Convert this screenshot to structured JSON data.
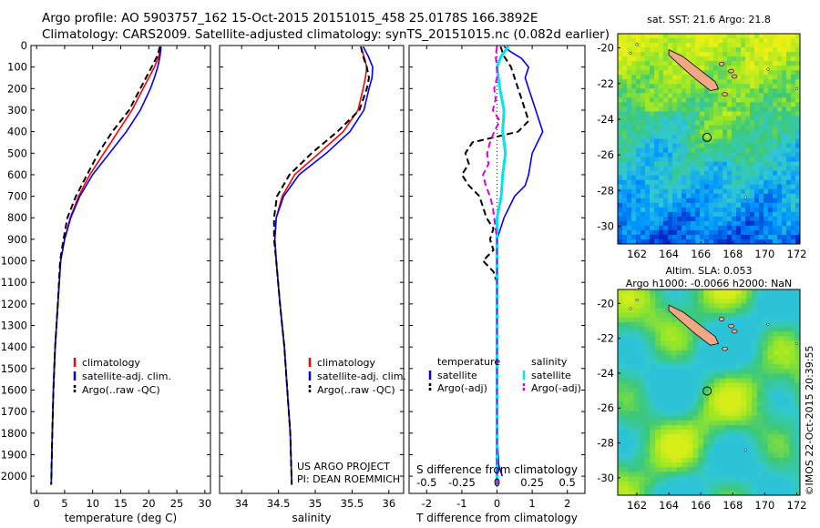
{
  "header": {
    "line1": "Argo profile: AO 5903757_162 15-Oct-2015 20151015_458 25.0178S 166.3892E",
    "line2": "Climatology: CARS2009. Satellite-adjusted climatology: synTS_20151015.nc (0.082d earlier)"
  },
  "colors": {
    "clim": "#ff0000",
    "sat": "#0000ff",
    "argo": "#000000",
    "sat_sal": "#00e5ee",
    "argo_sal": "#dd00dd"
  },
  "chart_data": [
    {
      "id": "temperature",
      "type": "line",
      "xlabel": "temperature (deg C)",
      "ylabel": "",
      "xlim": [
        -1,
        31
      ],
      "xticks": [
        0,
        5,
        10,
        15,
        20,
        25,
        30
      ],
      "ylim": [
        2080,
        0
      ],
      "yticks": [
        0,
        100,
        200,
        300,
        400,
        500,
        600,
        700,
        800,
        900,
        1000,
        1100,
        1200,
        1300,
        1400,
        1500,
        1600,
        1700,
        1800,
        1900,
        2000
      ],
      "legend": [
        "climatology",
        "satellite-adj. clim.",
        "Argo(..raw -QC)"
      ],
      "legend_position": "lower-center",
      "series": [
        {
          "name": "climatology",
          "style": "solid",
          "color": "#ff0000",
          "points": [
            [
              22.0,
              5
            ],
            [
              21.8,
              50
            ],
            [
              21.0,
              100
            ],
            [
              20.0,
              150
            ],
            [
              19.0,
              200
            ],
            [
              17.0,
              300
            ],
            [
              14.5,
              400
            ],
            [
              12.0,
              500
            ],
            [
              9.5,
              600
            ],
            [
              7.5,
              700
            ],
            [
              6.0,
              800
            ],
            [
              5.0,
              900
            ],
            [
              4.3,
              1000
            ],
            [
              3.8,
              1200
            ],
            [
              3.3,
              1400
            ],
            [
              3.0,
              1600
            ],
            [
              2.8,
              1800
            ],
            [
              2.6,
              2040
            ]
          ]
        },
        {
          "name": "satellite-adj. clim.",
          "style": "solid",
          "color": "#0000ff",
          "points": [
            [
              22.2,
              5
            ],
            [
              22.0,
              50
            ],
            [
              21.6,
              100
            ],
            [
              21.0,
              150
            ],
            [
              20.3,
              200
            ],
            [
              18.5,
              300
            ],
            [
              16.0,
              400
            ],
            [
              13.0,
              500
            ],
            [
              10.0,
              600
            ],
            [
              7.7,
              700
            ],
            [
              6.1,
              800
            ],
            [
              5.0,
              900
            ],
            [
              4.3,
              1000
            ],
            [
              3.8,
              1200
            ],
            [
              3.3,
              1400
            ],
            [
              3.0,
              1600
            ],
            [
              2.8,
              1800
            ],
            [
              2.6,
              2040
            ]
          ]
        },
        {
          "name": "Argo(..raw -QC)",
          "style": "dashed",
          "color": "#000000",
          "points": [
            [
              22.0,
              5
            ],
            [
              21.5,
              50
            ],
            [
              20.5,
              100
            ],
            [
              19.5,
              150
            ],
            [
              18.5,
              200
            ],
            [
              16.5,
              300
            ],
            [
              13.5,
              400
            ],
            [
              11.0,
              500
            ],
            [
              9.0,
              600
            ],
            [
              7.0,
              700
            ],
            [
              5.5,
              800
            ],
            [
              4.8,
              900
            ],
            [
              4.2,
              1000
            ],
            [
              3.8,
              1200
            ],
            [
              3.3,
              1400
            ],
            [
              3.0,
              1600
            ],
            [
              2.8,
              1800
            ],
            [
              2.6,
              2040
            ]
          ]
        }
      ]
    },
    {
      "id": "salinity",
      "type": "line",
      "xlabel": "salinity",
      "ylabel": "",
      "xlim": [
        33.7,
        36.2
      ],
      "xticks": [
        34,
        34.5,
        35,
        35.5,
        36
      ],
      "ylim": [
        2080,
        0
      ],
      "legend": [
        "climatology",
        "satellite-adj. clim.",
        "Argo(..raw -QC)"
      ],
      "legend_position": "lower-center",
      "annotations": [
        "US ARGO PROJECT",
        "PI: DEAN ROEMMICH"
      ],
      "series": [
        {
          "name": "climatology",
          "style": "solid",
          "color": "#ff0000",
          "points": [
            [
              35.62,
              5
            ],
            [
              35.66,
              50
            ],
            [
              35.7,
              100
            ],
            [
              35.68,
              150
            ],
            [
              35.65,
              200
            ],
            [
              35.58,
              300
            ],
            [
              35.38,
              400
            ],
            [
              35.05,
              500
            ],
            [
              34.72,
              600
            ],
            [
              34.55,
              700
            ],
            [
              34.47,
              800
            ],
            [
              34.45,
              900
            ],
            [
              34.47,
              1000
            ],
            [
              34.52,
              1200
            ],
            [
              34.58,
              1400
            ],
            [
              34.62,
              1600
            ],
            [
              34.66,
              1800
            ],
            [
              34.68,
              2040
            ]
          ]
        },
        {
          "name": "satellite-adj. clim.",
          "style": "solid",
          "color": "#0000ff",
          "points": [
            [
              35.65,
              5
            ],
            [
              35.72,
              50
            ],
            [
              35.78,
              100
            ],
            [
              35.77,
              150
            ],
            [
              35.73,
              200
            ],
            [
              35.66,
              300
            ],
            [
              35.47,
              400
            ],
            [
              35.15,
              500
            ],
            [
              34.78,
              600
            ],
            [
              34.57,
              700
            ],
            [
              34.47,
              800
            ],
            [
              34.45,
              900
            ],
            [
              34.47,
              1000
            ],
            [
              34.52,
              1200
            ],
            [
              34.58,
              1400
            ],
            [
              34.62,
              1600
            ],
            [
              34.66,
              1800
            ],
            [
              34.68,
              2040
            ]
          ]
        },
        {
          "name": "Argo(..raw -QC)",
          "style": "dashed",
          "color": "#000000",
          "points": [
            [
              35.62,
              5
            ],
            [
              35.65,
              50
            ],
            [
              35.7,
              100
            ],
            [
              35.73,
              150
            ],
            [
              35.7,
              200
            ],
            [
              35.6,
              300
            ],
            [
              35.3,
              400
            ],
            [
              34.95,
              500
            ],
            [
              34.65,
              600
            ],
            [
              34.48,
              700
            ],
            [
              34.44,
              800
            ],
            [
              34.44,
              900
            ],
            [
              34.47,
              1000
            ],
            [
              34.52,
              1200
            ],
            [
              34.58,
              1400
            ],
            [
              34.62,
              1600
            ],
            [
              34.66,
              1800
            ],
            [
              34.68,
              2040
            ]
          ]
        }
      ]
    },
    {
      "id": "difference",
      "type": "line",
      "xlabel": "T difference from climatology",
      "x2label": "S difference from climatology",
      "xlim": [
        -2.5,
        2.5
      ],
      "xticks": [
        -2,
        -1,
        0,
        1,
        2
      ],
      "x2lim": [
        -0.625,
        0.625
      ],
      "x2ticks": [
        -0.5,
        -0.25,
        0,
        0.25,
        0.5
      ],
      "x2ticklabels": [
        "-0.5",
        "-0.25",
        "0",
        "0.25",
        "0.5"
      ],
      "ylim": [
        2080,
        0
      ],
      "legend_titles": [
        "temperature",
        "salinity"
      ],
      "legend": [
        "satellite",
        "Argo(-adj)",
        "satellite",
        "Argo(-adj)"
      ],
      "series": [
        {
          "name": "temperature satellite",
          "variable": "T",
          "style": "solid",
          "color": "#0000ff",
          "points": [
            [
              0.2,
              5
            ],
            [
              0.4,
              30
            ],
            [
              0.7,
              60
            ],
            [
              0.9,
              100
            ],
            [
              0.8,
              150
            ],
            [
              0.9,
              200
            ],
            [
              1.0,
              250
            ],
            [
              1.1,
              300
            ],
            [
              1.3,
              400
            ],
            [
              1.0,
              500
            ],
            [
              0.9,
              600
            ],
            [
              0.8,
              650
            ],
            [
              0.5,
              700
            ],
            [
              0.2,
              800
            ],
            [
              0.0,
              900
            ],
            [
              0.0,
              1000
            ],
            [
              0.0,
              1200
            ],
            [
              0.0,
              1400
            ],
            [
              0.0,
              1600
            ],
            [
              0.0,
              1800
            ],
            [
              0.05,
              1950
            ],
            [
              0.15,
              2000
            ]
          ]
        },
        {
          "name": "temperature Argo(-adj)",
          "variable": "T",
          "style": "dashed",
          "color": "#000000",
          "points": [
            [
              0.1,
              5
            ],
            [
              0.2,
              50
            ],
            [
              0.4,
              100
            ],
            [
              0.5,
              150
            ],
            [
              0.6,
              200
            ],
            [
              0.8,
              300
            ],
            [
              0.9,
              350
            ],
            [
              0.6,
              400
            ],
            [
              -0.7,
              450
            ],
            [
              -0.9,
              500
            ],
            [
              -0.8,
              550
            ],
            [
              -1.0,
              600
            ],
            [
              -0.8,
              650
            ],
            [
              -0.5,
              700
            ],
            [
              -0.4,
              750
            ],
            [
              -0.3,
              800
            ],
            [
              -0.1,
              850
            ],
            [
              -0.2,
              900
            ],
            [
              -0.1,
              950
            ],
            [
              -0.4,
              1000
            ],
            [
              -0.1,
              1050
            ],
            [
              0.0,
              1100
            ],
            [
              0.0,
              1200
            ],
            [
              0.0,
              1400
            ],
            [
              0.0,
              1600
            ],
            [
              0.0,
              1800
            ],
            [
              0.0,
              2040
            ]
          ]
        },
        {
          "name": "salinity satellite",
          "variable": "S",
          "style": "solid",
          "color": "#00e5ee",
          "points": [
            [
              0.08,
              5
            ],
            [
              0.03,
              50
            ],
            [
              0.0,
              100
            ],
            [
              0.01,
              150
            ],
            [
              0.02,
              200
            ],
            [
              0.05,
              300
            ],
            [
              0.04,
              400
            ],
            [
              0.06,
              500
            ],
            [
              0.04,
              600
            ],
            [
              0.03,
              700
            ],
            [
              0.0,
              800
            ],
            [
              0.0,
              900
            ],
            [
              0.0,
              1000
            ],
            [
              0.0,
              1200
            ],
            [
              0.0,
              1400
            ],
            [
              0.0,
              1600
            ],
            [
              0.0,
              1800
            ],
            [
              0.0,
              2040
            ]
          ]
        },
        {
          "name": "salinity Argo(-adj)",
          "variable": "S",
          "style": "dashed",
          "color": "#dd00dd",
          "points": [
            [
              0.0,
              5
            ],
            [
              -0.01,
              50
            ],
            [
              0.0,
              100
            ],
            [
              0.0,
              150
            ],
            [
              -0.02,
              200
            ],
            [
              -0.01,
              250
            ],
            [
              -0.03,
              300
            ],
            [
              0.02,
              350
            ],
            [
              -0.02,
              400
            ],
            [
              -0.05,
              450
            ],
            [
              -0.07,
              500
            ],
            [
              -0.06,
              550
            ],
            [
              -0.1,
              600
            ],
            [
              -0.08,
              650
            ],
            [
              -0.05,
              700
            ],
            [
              -0.03,
              750
            ],
            [
              -0.02,
              800
            ],
            [
              0.0,
              900
            ],
            [
              0.0,
              1000
            ],
            [
              0.0,
              1200
            ],
            [
              0.0,
              1400
            ],
            [
              0.0,
              1600
            ],
            [
              0.0,
              1800
            ],
            [
              0.0,
              2040
            ]
          ]
        }
      ]
    },
    {
      "id": "sst-map",
      "type": "heatmap",
      "title": "sat. SST: 21.6 Argo: 21.8",
      "xticks": [
        162,
        164,
        166,
        168,
        170,
        172
      ],
      "yticks": [
        -20,
        -22,
        -24,
        -26,
        -28,
        -30
      ],
      "xlim": [
        160.8,
        172.2
      ],
      "ylim": [
        -31.0,
        -19.2
      ],
      "argo_location": [
        166.39,
        -25.02
      ]
    },
    {
      "id": "sla-map",
      "type": "heatmap",
      "title_lines": [
        "Altim. SLA: 0.053",
        "Argo h1000: -0.0066 h2000: NaN"
      ],
      "xticks": [
        162,
        164,
        166,
        168,
        170,
        172
      ],
      "yticks": [
        -20,
        -22,
        -24,
        -26,
        -28,
        -30
      ],
      "xlim": [
        160.8,
        172.2
      ],
      "ylim": [
        -31.0,
        -19.2
      ],
      "argo_location": [
        166.39,
        -25.02
      ]
    }
  ],
  "credit": "©IMOS 22-Oct-2015 20:39:55"
}
